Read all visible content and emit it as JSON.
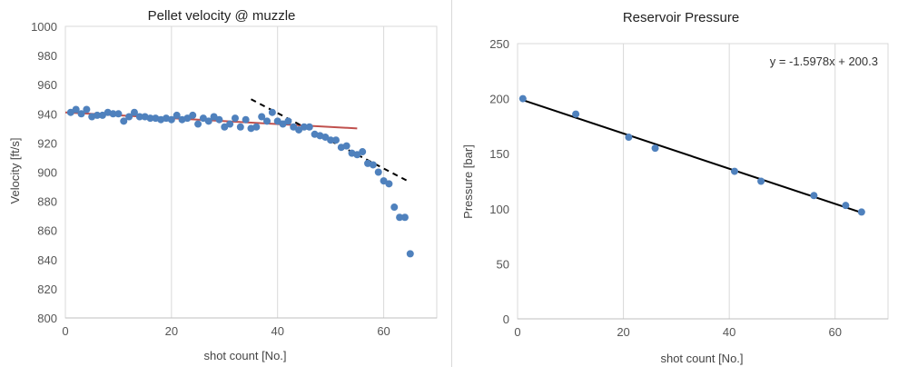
{
  "chart_data": [
    {
      "type": "scatter",
      "title": "Pellet velocity @ muzzle",
      "xlabel": "shot count [No.]",
      "ylabel": "Velocity [ft/s]",
      "xlim": [
        0,
        70
      ],
      "ylim": [
        800,
        1000
      ],
      "xticks": [
        0,
        20,
        40,
        60
      ],
      "yticks": [
        800,
        820,
        840,
        860,
        880,
        900,
        920,
        940,
        960,
        980,
        1000
      ],
      "grid": "vertical",
      "colors": {
        "points": "#4f81bd",
        "trend": "#c0504d",
        "dashed": "#000000"
      },
      "series": [
        {
          "x": [
            1,
            2,
            3,
            4,
            5,
            6,
            7,
            8,
            9,
            10,
            11,
            12,
            13,
            14,
            15,
            16,
            17,
            18,
            19,
            20,
            21,
            22,
            23,
            24,
            25,
            26,
            27,
            28,
            29,
            30,
            31,
            32,
            33,
            34,
            35,
            36,
            37,
            38,
            39,
            40,
            41,
            42,
            43,
            44,
            45,
            46,
            47,
            48,
            49,
            50,
            51,
            52,
            53,
            54,
            55,
            56,
            57,
            58,
            59,
            60,
            61,
            62,
            63,
            64,
            65
          ],
          "y": [
            941,
            943,
            940,
            943,
            938,
            939,
            939,
            941,
            940,
            940,
            935,
            938,
            941,
            938,
            938,
            937,
            937,
            936,
            937,
            936,
            939,
            936,
            937,
            939,
            933,
            937,
            935,
            938,
            936,
            931,
            933,
            937,
            931,
            936,
            930,
            931,
            938,
            935,
            941,
            935,
            933,
            935,
            931,
            929,
            931,
            931,
            926,
            925,
            924,
            922,
            922,
            917,
            918,
            913,
            912,
            914,
            906,
            905,
            900,
            894,
            892,
            876,
            869,
            869,
            844
          ]
        }
      ],
      "trendlines": [
        {
          "style": "solid",
          "x": [
            0,
            55
          ],
          "y": [
            941,
            930
          ]
        },
        {
          "style": "dashed",
          "x": [
            35,
            65
          ],
          "y": [
            950,
            893
          ]
        }
      ]
    },
    {
      "type": "scatter",
      "title": "Reservoir Pressure",
      "xlabel": "shot count [No.]",
      "ylabel": "Pressure [bar]",
      "xlim": [
        0,
        70
      ],
      "ylim": [
        0,
        250
      ],
      "xticks": [
        0,
        20,
        40,
        60
      ],
      "yticks": [
        0,
        50,
        100,
        150,
        200,
        250
      ],
      "grid": "vertical",
      "legend": "top-right",
      "equation": "y = -1.5978x + 200.3",
      "colors": {
        "points": "#4f81bd",
        "trend": "#000000"
      },
      "series": [
        {
          "x": [
            1,
            11,
            21,
            26,
            41,
            46,
            56,
            62,
            65
          ],
          "y": [
            200,
            186,
            165,
            155,
            134,
            125,
            112,
            103,
            97
          ]
        }
      ],
      "trendlines": [
        {
          "style": "solid",
          "slope": -1.5978,
          "intercept": 200.3,
          "x": [
            1,
            65
          ]
        }
      ]
    }
  ]
}
